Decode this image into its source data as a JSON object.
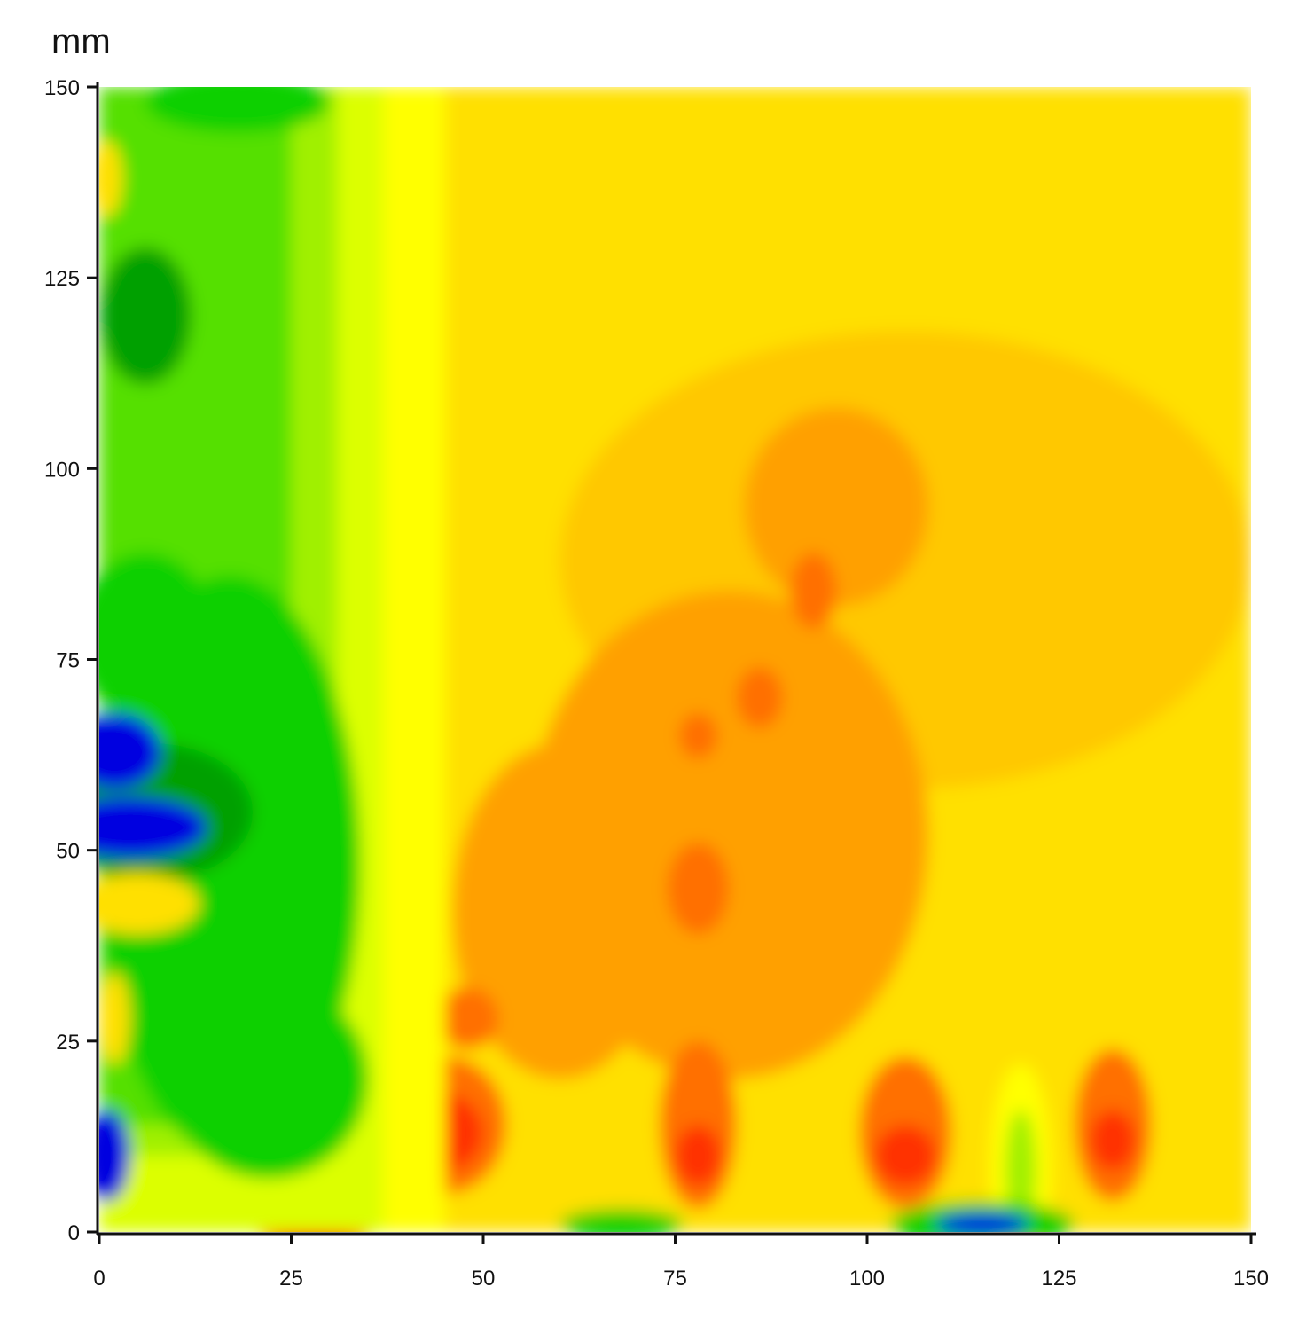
{
  "chart_data": {
    "type": "heatmap",
    "unit_label": "mm",
    "xlim": [
      0,
      150
    ],
    "ylim": [
      0,
      150
    ],
    "x_ticks": [
      0,
      25,
      50,
      75,
      100,
      125,
      150
    ],
    "y_ticks": [
      0,
      25,
      50,
      75,
      100,
      125,
      150
    ],
    "grid": false,
    "legend": "none",
    "colormap": [
      "#0000e0",
      "#00a000",
      "#10d000",
      "#55e000",
      "#a0f000",
      "#dcff00",
      "#ffff00",
      "#ffe000",
      "#ffc800",
      "#ffa000",
      "#ff7000",
      "#ff3000"
    ],
    "field_regions": [
      {
        "shape": "rect",
        "x0": 0,
        "x1": 150,
        "y0": 0,
        "y1": 150,
        "color": "#ffe000"
      },
      {
        "shape": "ellipse",
        "cx": 105,
        "cy": 88,
        "rx": 45,
        "ry": 30,
        "color": "#ffc800"
      },
      {
        "shape": "ellipse",
        "cx": 96,
        "cy": 95,
        "rx": 12,
        "ry": 13,
        "color": "#ffa000"
      },
      {
        "shape": "ellipse",
        "cx": 82,
        "cy": 52,
        "rx": 26,
        "ry": 32,
        "color": "#ffa000"
      },
      {
        "shape": "ellipse",
        "cx": 60,
        "cy": 42,
        "rx": 14,
        "ry": 22,
        "color": "#ffa000"
      },
      {
        "shape": "ellipse",
        "cx": 78,
        "cy": 45,
        "rx": 4,
        "ry": 6,
        "color": "#ff7000"
      },
      {
        "shape": "ellipse",
        "cx": 93,
        "cy": 84,
        "rx": 3,
        "ry": 5,
        "color": "#ff7000"
      },
      {
        "shape": "ellipse",
        "cx": 86,
        "cy": 70,
        "rx": 3,
        "ry": 4,
        "color": "#ff7000"
      },
      {
        "shape": "ellipse",
        "cx": 78,
        "cy": 65,
        "rx": 2.5,
        "ry": 3,
        "color": "#ff7000"
      },
      {
        "shape": "ellipse",
        "cx": 48,
        "cy": 28,
        "rx": 4,
        "ry": 4,
        "color": "#ff7000"
      },
      {
        "shape": "ellipse",
        "cx": 45,
        "cy": 14,
        "rx": 8,
        "ry": 9,
        "color": "#ff7000"
      },
      {
        "shape": "ellipse",
        "cx": 45,
        "cy": 13,
        "rx": 5,
        "ry": 5,
        "color": "#ff3000"
      },
      {
        "shape": "ellipse",
        "cx": 78,
        "cy": 14,
        "rx": 5,
        "ry": 11,
        "color": "#ff7000"
      },
      {
        "shape": "ellipse",
        "cx": 78,
        "cy": 10,
        "rx": 3,
        "ry": 4,
        "color": "#ff3000"
      },
      {
        "shape": "ellipse",
        "cx": 105,
        "cy": 13,
        "rx": 6,
        "ry": 10,
        "color": "#ff7000"
      },
      {
        "shape": "ellipse",
        "cx": 105,
        "cy": 10,
        "rx": 4,
        "ry": 4,
        "color": "#ff3000"
      },
      {
        "shape": "ellipse",
        "cx": 132,
        "cy": 14,
        "rx": 5,
        "ry": 10,
        "color": "#ff7000"
      },
      {
        "shape": "ellipse",
        "cx": 132,
        "cy": 12,
        "rx": 3,
        "ry": 4,
        "color": "#ff3000"
      },
      {
        "shape": "ellipse",
        "cx": 120,
        "cy": 8,
        "rx": 4,
        "ry": 14,
        "color": "#ffff00"
      },
      {
        "shape": "ellipse",
        "cx": 120,
        "cy": 8,
        "rx": 2,
        "ry": 8,
        "color": "#a0f000"
      },
      {
        "shape": "ellipse",
        "cx": 28,
        "cy": 2,
        "rx": 8,
        "ry": 5,
        "color": "#ff7000"
      },
      {
        "shape": "ellipse",
        "cx": 28,
        "cy": 1,
        "rx": 5,
        "ry": 3,
        "color": "#ff3000"
      },
      {
        "shape": "ellipse",
        "cx": 115,
        "cy": 1,
        "rx": 12,
        "ry": 3,
        "color": "#10d000"
      },
      {
        "shape": "ellipse",
        "cx": 115,
        "cy": 1,
        "rx": 6,
        "ry": 1.5,
        "color": "#0000e0"
      },
      {
        "shape": "ellipse",
        "cx": 68,
        "cy": 1,
        "rx": 8,
        "ry": 2,
        "color": "#10d000"
      },
      {
        "shape": "rect",
        "x0": 0,
        "x1": 45,
        "y0": 0,
        "y1": 150,
        "color": "#ffff00"
      },
      {
        "shape": "rect",
        "x0": 0,
        "x1": 37,
        "y0": 0,
        "y1": 150,
        "color": "#dcff00"
      },
      {
        "shape": "rect",
        "x0": 0,
        "x1": 31,
        "y0": 10,
        "y1": 150,
        "color": "#a0f000"
      },
      {
        "shape": "rect",
        "x0": 0,
        "x1": 25,
        "y0": 14,
        "y1": 150,
        "color": "#55e000"
      },
      {
        "shape": "ellipse",
        "cx": 17,
        "cy": 48,
        "rx": 17,
        "ry": 38,
        "color": "#10d000"
      },
      {
        "shape": "ellipse",
        "cx": 22,
        "cy": 20,
        "rx": 13,
        "ry": 13,
        "color": "#10d000"
      },
      {
        "shape": "ellipse",
        "cx": 6,
        "cy": 120,
        "rx": 6,
        "ry": 9,
        "color": "#00a000"
      },
      {
        "shape": "ellipse",
        "cx": 6,
        "cy": 78,
        "rx": 9,
        "ry": 11,
        "color": "#10d000"
      },
      {
        "shape": "ellipse",
        "cx": 7,
        "cy": 55,
        "rx": 13,
        "ry": 9,
        "color": "#00a000"
      },
      {
        "shape": "ellipse",
        "cx": 4,
        "cy": 53,
        "rx": 10,
        "ry": 4,
        "color": "#0000e0"
      },
      {
        "shape": "ellipse",
        "cx": 2,
        "cy": 63,
        "rx": 6,
        "ry": 5,
        "color": "#0000e0"
      },
      {
        "shape": "ellipse",
        "cx": 5,
        "cy": 43,
        "rx": 8,
        "ry": 4,
        "color": "#ffe000"
      },
      {
        "shape": "ellipse",
        "cx": 2,
        "cy": 28,
        "rx": 2,
        "ry": 6,
        "color": "#ffe000"
      },
      {
        "shape": "ellipse",
        "cx": 1,
        "cy": 10,
        "rx": 3,
        "ry": 6,
        "color": "#0000e0"
      },
      {
        "shape": "ellipse",
        "cx": 18,
        "cy": 148,
        "rx": 12,
        "ry": 4,
        "color": "#10d000"
      },
      {
        "shape": "ellipse",
        "cx": 1,
        "cy": 138,
        "rx": 2,
        "ry": 5,
        "color": "#ffe000"
      }
    ]
  }
}
